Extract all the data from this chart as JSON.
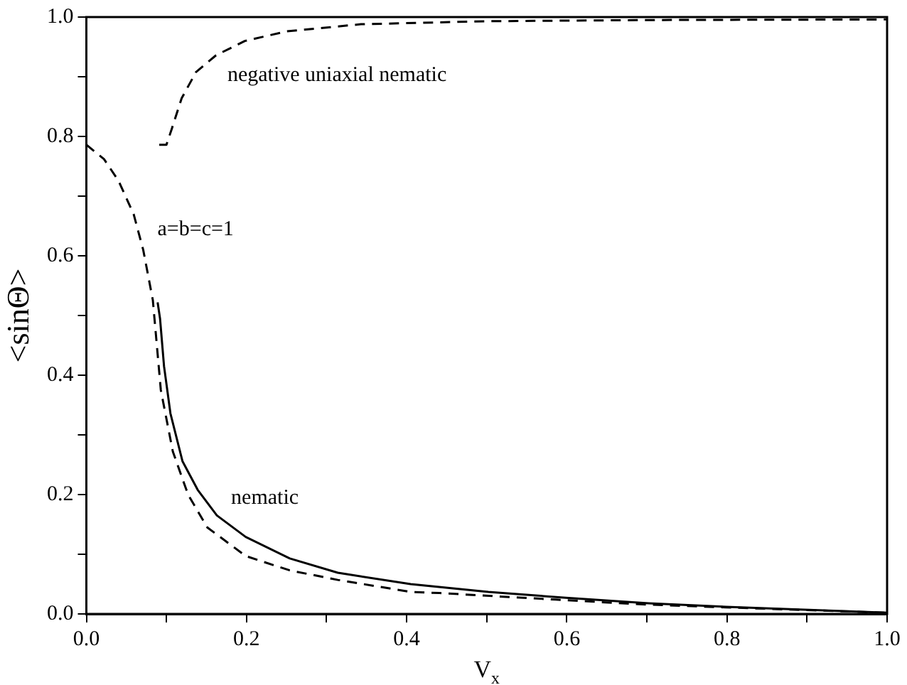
{
  "chart_data": {
    "type": "line",
    "xlabel": "V$_{x}$",
    "ylabel": "<sinΘ>",
    "xlim": [
      0,
      1
    ],
    "ylim": [
      0,
      1
    ],
    "xticks": [
      {
        "value": 0,
        "label": "0.0"
      },
      {
        "value": 0.1,
        "label": null
      },
      {
        "value": 0.2,
        "label": "0.2"
      },
      {
        "value": 0.3,
        "label": null
      },
      {
        "value": 0.4,
        "label": "0.4"
      },
      {
        "value": 0.5,
        "label": null
      },
      {
        "value": 0.6,
        "label": "0.6"
      },
      {
        "value": 0.7,
        "label": null
      },
      {
        "value": 0.8,
        "label": "0.8"
      },
      {
        "value": 0.9,
        "label": null
      },
      {
        "value": 1,
        "label": "1.0"
      }
    ],
    "yticks": [
      {
        "value": 0,
        "label": "0.0"
      },
      {
        "value": 0.1,
        "label": null
      },
      {
        "value": 0.2,
        "label": "0.2"
      },
      {
        "value": 0.3,
        "label": null
      },
      {
        "value": 0.4,
        "label": "0.4"
      },
      {
        "value": 0.5,
        "label": null
      },
      {
        "value": 0.6,
        "label": "0.6"
      },
      {
        "value": 0.7,
        "label": null
      },
      {
        "value": 0.8,
        "label": "0.8"
      },
      {
        "value": 0.9,
        "label": null
      },
      {
        "value": 1,
        "label": "1.0"
      }
    ],
    "grid": false,
    "legend": false,
    "marker": "none",
    "series": [
      {
        "name": "negative uniaxial nematic",
        "color": "#000000",
        "line_style": "dashed",
        "x": [
          0.091,
          0.1,
          0.107,
          0.119,
          0.137,
          0.162,
          0.198,
          0.25,
          0.343,
          0.5,
          0.7,
          1.0
        ],
        "values": [
          0.786,
          0.786,
          0.814,
          0.864,
          0.908,
          0.936,
          0.96,
          0.976,
          0.988,
          0.993,
          0.995,
          0.996
        ]
      },
      {
        "name": "a=b=c=1",
        "color": "#000000",
        "line_style": "dashed",
        "x": [
          0,
          0.022,
          0.04,
          0.059,
          0.071,
          0.083,
          0.093,
          0.108,
          0.127,
          0.151,
          0.199,
          0.254,
          0.314,
          0.405,
          0.441,
          0.586,
          0.695,
          0.798,
          1.0
        ],
        "values": [
          0.786,
          0.762,
          0.726,
          0.67,
          0.61,
          0.526,
          0.375,
          0.272,
          0.2,
          0.145,
          0.097,
          0.073,
          0.057,
          0.037,
          0.035,
          0.024,
          0.016,
          0.011,
          0.002
        ]
      },
      {
        "name": "nematic",
        "color": "#000000",
        "line_style": "solid",
        "x": [
          0.089,
          0.092,
          0.097,
          0.105,
          0.12,
          0.139,
          0.163,
          0.199,
          0.254,
          0.314,
          0.405,
          0.502,
          0.599,
          0.702,
          0.799,
          1.0
        ],
        "values": [
          0.522,
          0.495,
          0.415,
          0.336,
          0.256,
          0.208,
          0.165,
          0.129,
          0.093,
          0.069,
          0.05,
          0.037,
          0.027,
          0.018,
          0.012,
          0.002
        ]
      }
    ]
  }
}
